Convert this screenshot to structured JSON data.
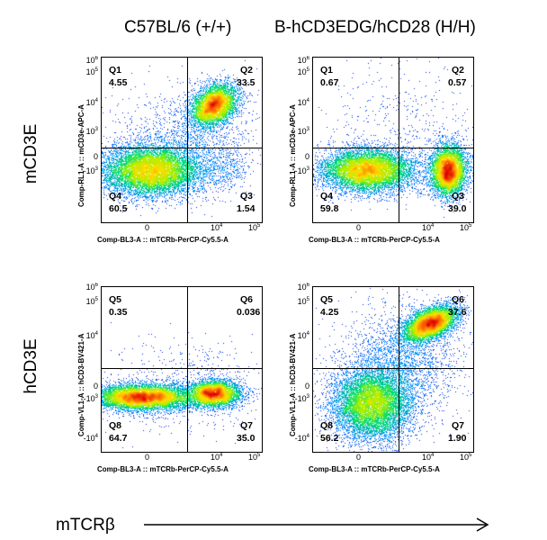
{
  "columns": [
    "C57BL/6 (+/+)",
    "B-hCD3EDG/hCD28 (H/H)"
  ],
  "rows": [
    "mCD3E",
    "hCD3E"
  ],
  "x_axis_arrow_label": "mTCRβ",
  "chart_data": [
    {
      "type": "scatter",
      "title": "C57BL/6 (+/+)",
      "xlabel": "Comp-BL3-A :: mTCRb-PerCP-Cy5.5-A",
      "ylabel": "Comp-RL1-A :: mCD3e-APC-A",
      "x_ticks": [
        "0",
        "10^4",
        "10^5"
      ],
      "y_ticks": [
        "10^6",
        "10^5",
        "10^4",
        "10^3",
        "0",
        "-10^3"
      ],
      "quadrants": [
        {
          "name": "Q1",
          "percent": "4.55"
        },
        {
          "name": "Q2",
          "percent": "33.5"
        },
        {
          "name": "Q3",
          "percent": "1.54"
        },
        {
          "name": "Q4",
          "percent": "60.5"
        }
      ]
    },
    {
      "type": "scatter",
      "title": "B-hCD3EDG/hCD28 (H/H)",
      "xlabel": "Comp-BL3-A :: mTCRb-PerCP-Cy5.5-A",
      "ylabel": "Comp-RL1-A :: mCD3e-APC-A",
      "x_ticks": [
        "0",
        "10^4",
        "10^5"
      ],
      "y_ticks": [
        "10^6",
        "10^5",
        "10^4",
        "10^3",
        "0",
        "-10^3"
      ],
      "quadrants": [
        {
          "name": "Q1",
          "percent": "0.67"
        },
        {
          "name": "Q2",
          "percent": "0.57"
        },
        {
          "name": "Q3",
          "percent": "39.0"
        },
        {
          "name": "Q4",
          "percent": "59.8"
        }
      ]
    },
    {
      "type": "scatter",
      "title": "C57BL/6 (+/+)",
      "xlabel": "Comp-BL3-A :: mTCRb-PerCP-Cy5.5-A",
      "ylabel": "Comp-VL1-A :: hCD3-BV421-A",
      "x_ticks": [
        "0",
        "10^4",
        "10^5"
      ],
      "y_ticks": [
        "10^6",
        "10^5",
        "10^4",
        "0",
        "-10^3",
        "-10^4"
      ],
      "quadrants": [
        {
          "name": "Q5",
          "percent": "0.35"
        },
        {
          "name": "Q6",
          "percent": "0.036"
        },
        {
          "name": "Q7",
          "percent": "35.0"
        },
        {
          "name": "Q8",
          "percent": "64.7"
        }
      ]
    },
    {
      "type": "scatter",
      "title": "B-hCD3EDG/hCD28 (H/H)",
      "xlabel": "Comp-BL3-A :: mTCRb-PerCP-Cy5.5-A",
      "ylabel": "Comp-VL1-A :: hCD3-BV421-A",
      "x_ticks": [
        "0",
        "10^4",
        "10^5"
      ],
      "y_ticks": [
        "10^6",
        "10^5",
        "10^4",
        "0",
        "-10^3",
        "-10^4"
      ],
      "quadrants": [
        {
          "name": "Q5",
          "percent": "4.25"
        },
        {
          "name": "Q6",
          "percent": "37.6"
        },
        {
          "name": "Q7",
          "percent": "1.90"
        },
        {
          "name": "Q8",
          "percent": "56.2"
        }
      ]
    }
  ]
}
